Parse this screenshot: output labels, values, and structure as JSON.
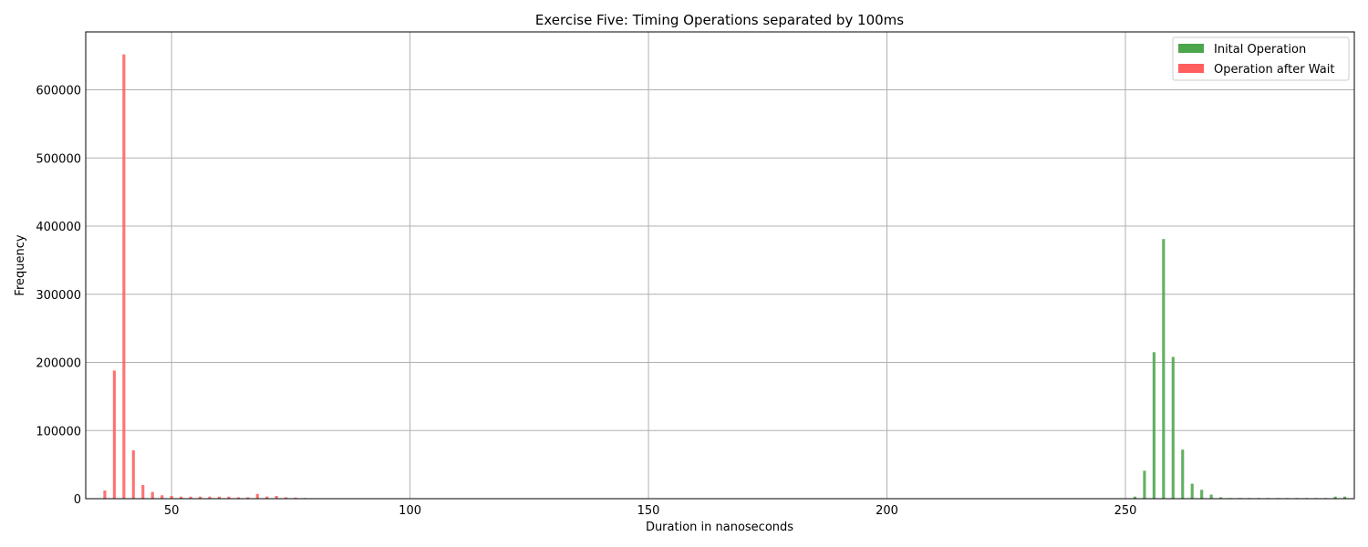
{
  "chart_data": {
    "type": "bar",
    "title": "Exercise Five: Timing Operations separated by 100ms",
    "xlabel": "Duration in nanoseconds",
    "ylabel": "Frequency",
    "xlim": [
      32,
      298
    ],
    "ylim": [
      0,
      685000
    ],
    "grid": true,
    "legend_position": "top-right",
    "x_ticks": [
      {
        "value": 50,
        "label": "50"
      },
      {
        "value": 100,
        "label": "100"
      },
      {
        "value": 150,
        "label": "150"
      },
      {
        "value": 200,
        "label": "200"
      },
      {
        "value": 250,
        "label": "250"
      }
    ],
    "y_ticks": [
      {
        "value": 0,
        "label": "0"
      },
      {
        "value": 100000,
        "label": "100000"
      },
      {
        "value": 200000,
        "label": "200000"
      },
      {
        "value": 300000,
        "label": "300000"
      },
      {
        "value": 400000,
        "label": "400000"
      },
      {
        "value": 500000,
        "label": "500000"
      },
      {
        "value": 600000,
        "label": "600000"
      }
    ],
    "bar_width": 0.6,
    "series": [
      {
        "name": "Inital Operation",
        "color": "#4ca64c",
        "x": [
          252,
          254,
          256,
          258,
          260,
          262,
          264,
          266,
          268,
          270,
          272,
          274,
          276,
          278,
          280,
          282,
          284,
          286,
          288,
          290,
          292,
          294,
          296
        ],
        "values": [
          3000,
          41000,
          215000,
          381000,
          208000,
          72000,
          22000,
          13000,
          6000,
          2000,
          1000,
          1000,
          1000,
          1000,
          1000,
          1000,
          1000,
          1000,
          1000,
          1000,
          1000,
          3000,
          3000
        ]
      },
      {
        "name": "Operation after Wait",
        "color": "#ff5e5e",
        "x": [
          36,
          38,
          40,
          42,
          44,
          46,
          48,
          50,
          52,
          54,
          56,
          58,
          60,
          62,
          64,
          66,
          68,
          70,
          72,
          74,
          76,
          78,
          80,
          82,
          84,
          86,
          88,
          90
        ],
        "values": [
          12000,
          188000,
          652000,
          71000,
          20000,
          10000,
          5000,
          4000,
          3000,
          3000,
          3000,
          3000,
          3000,
          3000,
          2000,
          2000,
          7000,
          3000,
          4000,
          2000,
          1500,
          1000,
          800,
          600,
          500,
          400,
          300,
          300
        ]
      }
    ]
  }
}
